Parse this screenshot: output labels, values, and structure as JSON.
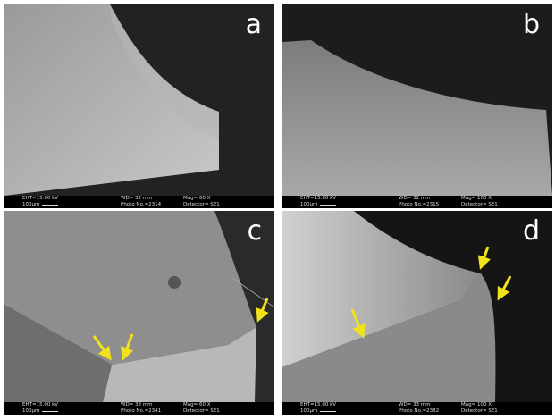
{
  "panels": [
    {
      "label": "a",
      "info": {
        "eht": "EHT=15.00 kV",
        "wd": "WD= 32 mm",
        "mag": "Mag= 60 X",
        "scale": "100µm",
        "photo": "Photo No.=2314",
        "detector": "Detector= SE1"
      }
    },
    {
      "label": "b",
      "info": {
        "eht": "EHT=15.00 kV",
        "wd": "WD= 32 mm",
        "mag": "Mag= 100 X",
        "scale": "100µm",
        "photo": "Photo No.=2315",
        "detector": "Detector= SE1"
      }
    },
    {
      "label": "c",
      "info": {
        "eht": "EHT=15.00 kV",
        "wd": "WD= 33 mm",
        "mag": "Mag= 60 X",
        "scale": "100µm",
        "photo": "Photo No.=2341",
        "detector": "Detector= SE1"
      }
    },
    {
      "label": "d",
      "info": {
        "eht": "EHT=15.00 kV",
        "wd": "WD= 33 mm",
        "mag": "Mag= 100 X",
        "scale": "100µm",
        "photo": "Photo No.=2382",
        "detector": "Detector= SE1"
      }
    }
  ]
}
